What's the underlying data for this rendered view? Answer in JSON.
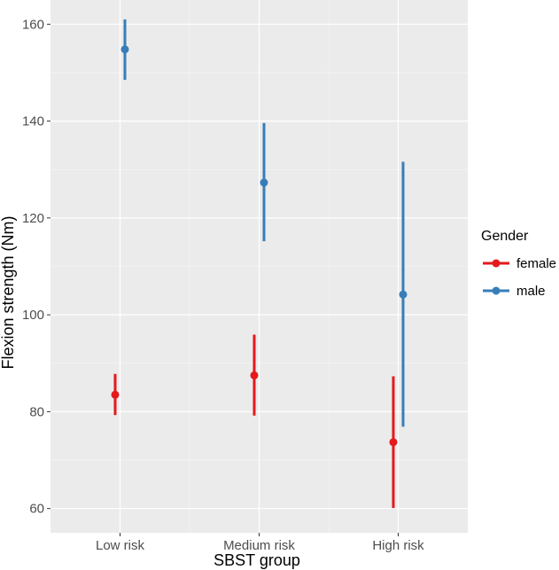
{
  "chart_data": {
    "type": "scatter",
    "subtype": "pointrange",
    "xlabel": "SBST group",
    "ylabel": "Flexion strength (Nm)",
    "categories": [
      "Low risk",
      "Medium risk",
      "High risk"
    ],
    "ylim": [
      55,
      165
    ],
    "yticks": [
      60,
      80,
      100,
      120,
      140,
      160
    ],
    "grid": true,
    "legend": {
      "title": "Gender",
      "position": "right"
    },
    "series": [
      {
        "name": "female",
        "color": "#e41a1c",
        "values": [
          83.5,
          87.5,
          73.7
        ],
        "lower": [
          79.3,
          79.2,
          60.1
        ],
        "upper": [
          87.8,
          95.9,
          87.3
        ]
      },
      {
        "name": "male",
        "color": "#377eb8",
        "values": [
          154.8,
          127.3,
          104.2
        ],
        "lower": [
          148.5,
          115.2,
          76.9
        ],
        "upper": [
          161.0,
          139.6,
          131.6
        ]
      }
    ]
  }
}
